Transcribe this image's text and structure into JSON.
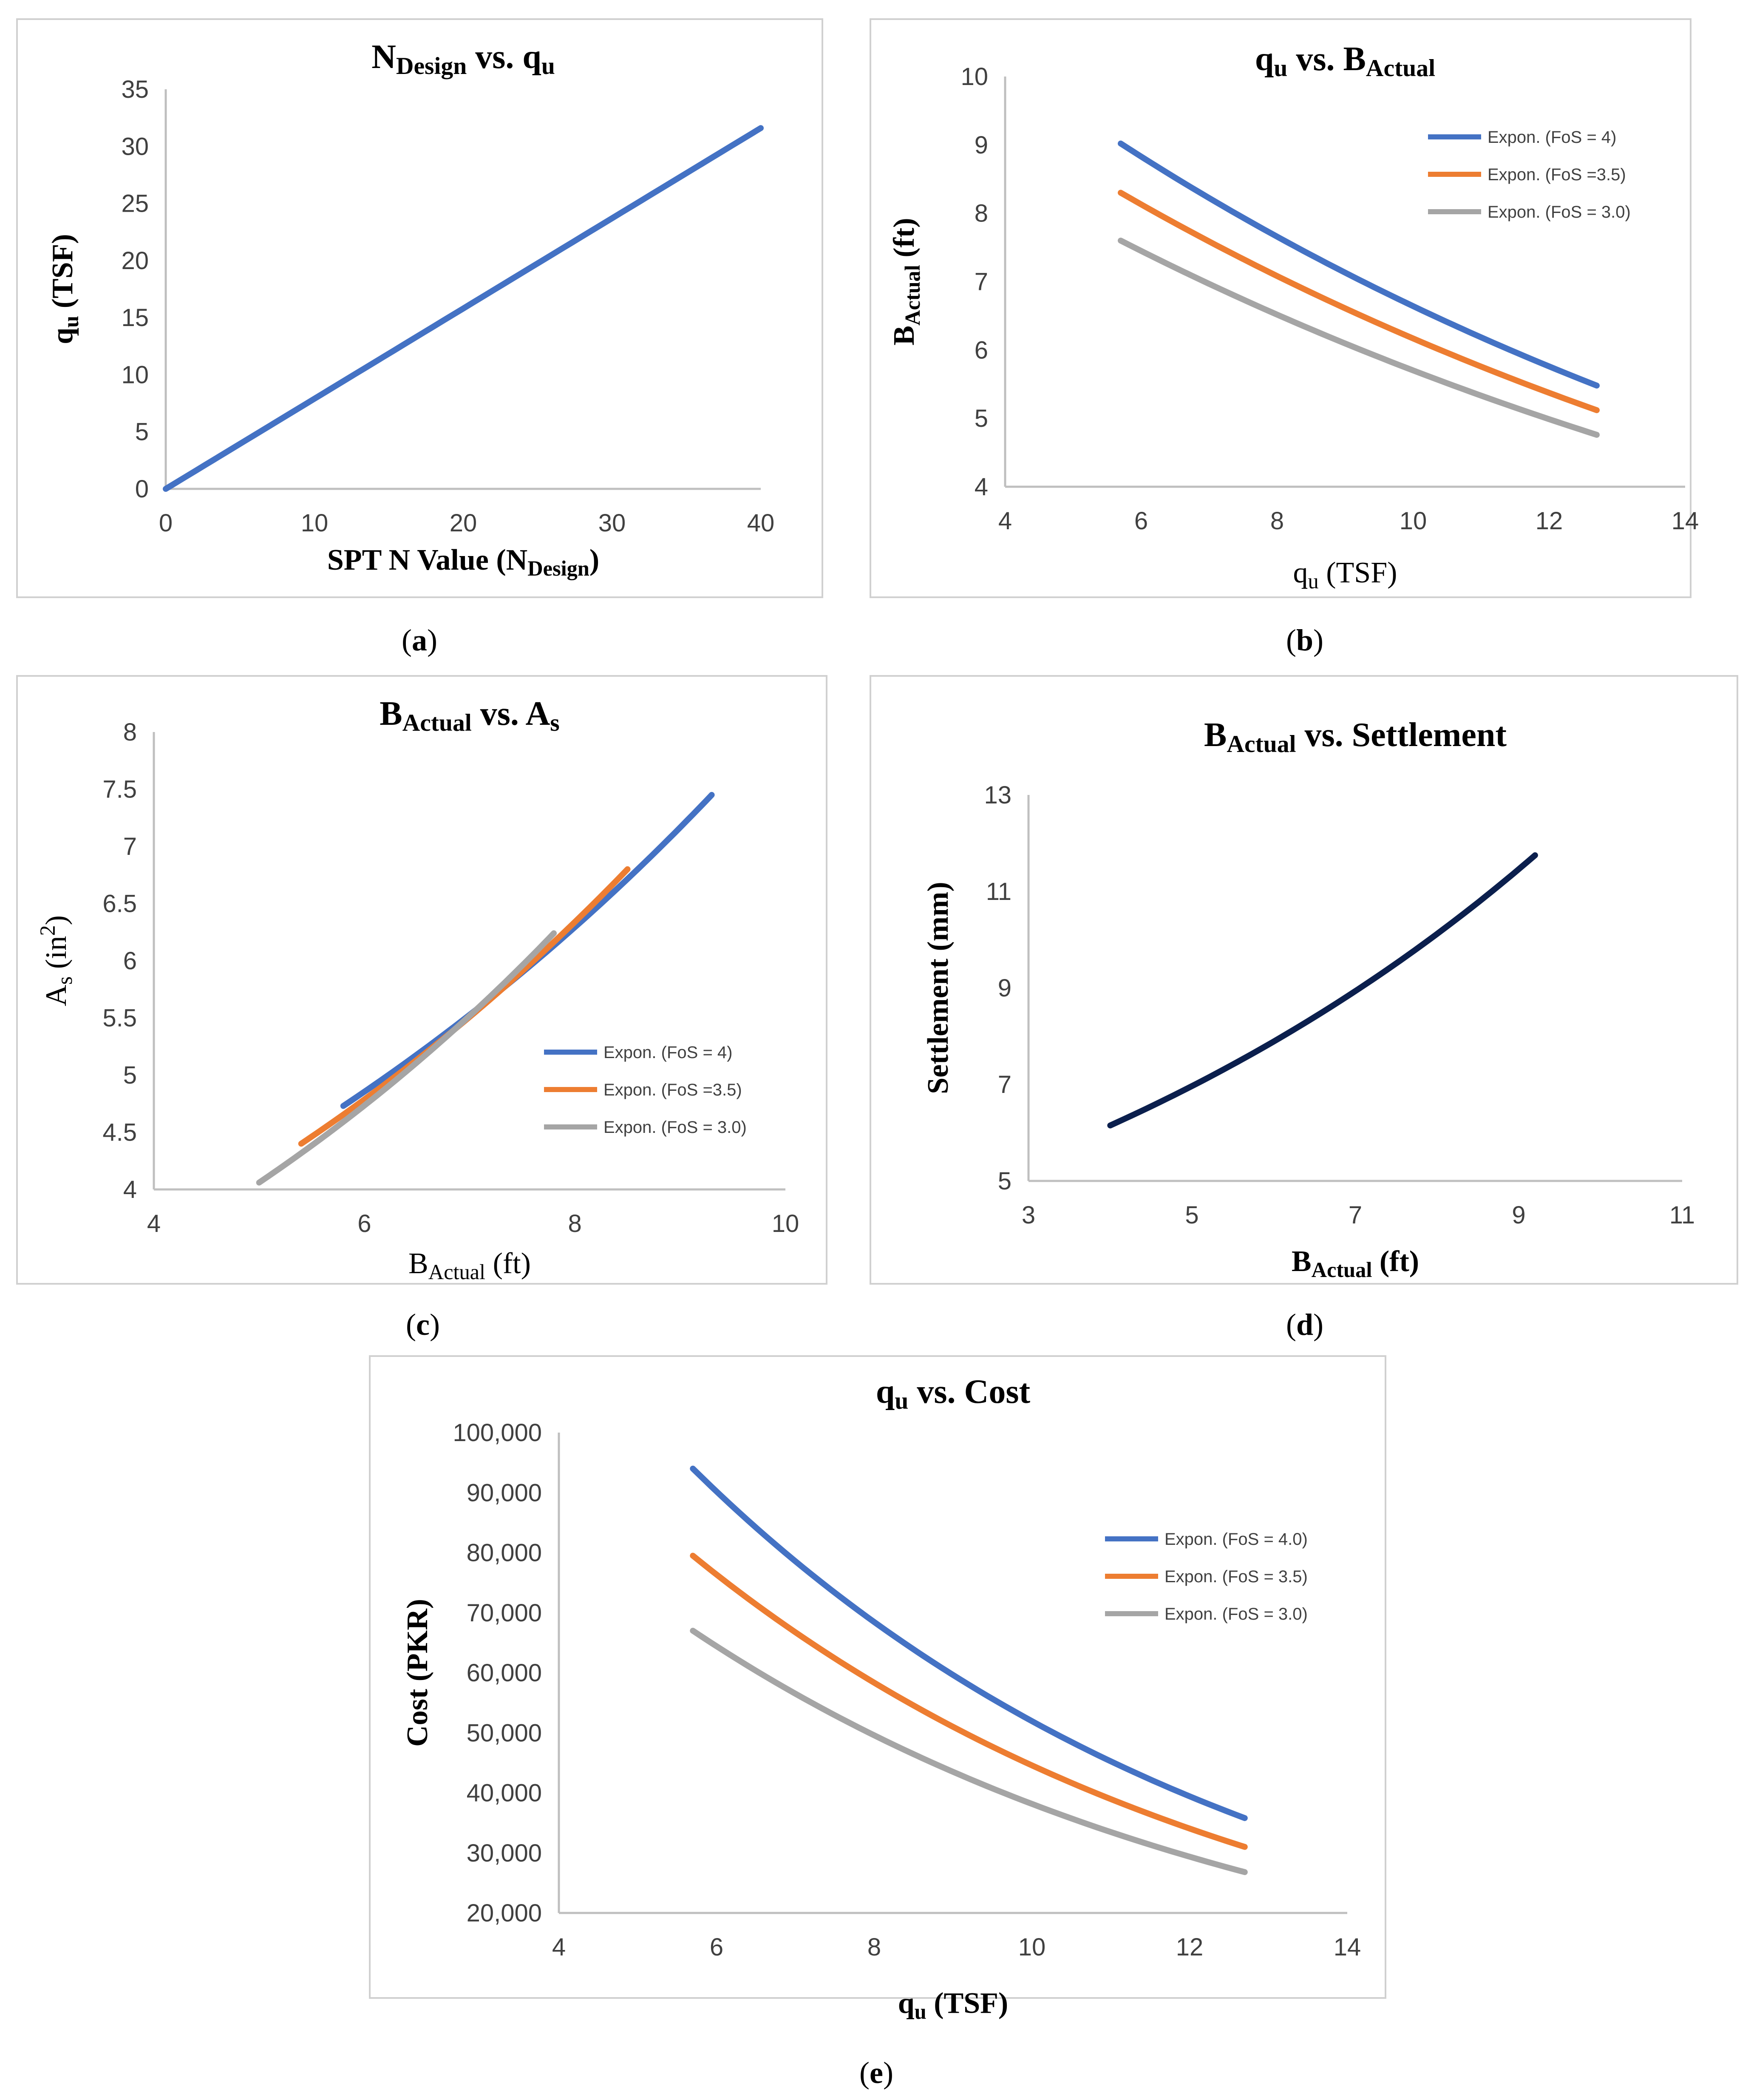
{
  "chart_data": [
    {
      "id": "a",
      "type": "line",
      "caption": "a",
      "title": {
        "main": "N",
        "sub": "Design",
        "rest": " vs. q",
        "sub2": "u"
      },
      "xlabel": {
        "main": "SPT N Value (N",
        "sub": "Design",
        "rest": ")"
      },
      "ylabel": {
        "main": "q",
        "sub": "u",
        "rest": " (TSF)"
      },
      "xlim": [
        0,
        40
      ],
      "ylim": [
        0,
        35
      ],
      "xticks": [
        "0",
        "10",
        "20",
        "30",
        "40"
      ],
      "yticks": [
        "0",
        "5",
        "10",
        "15",
        "20",
        "25",
        "30",
        "35"
      ],
      "series": [
        {
          "name": "",
          "color": "#4472C4",
          "x": [
            0,
            40
          ],
          "y": [
            0,
            31.6
          ]
        }
      ]
    },
    {
      "id": "b",
      "type": "line",
      "caption": "b",
      "title": {
        "main": "q",
        "sub": "u",
        "rest": " vs. B",
        "sub2": "Actual"
      },
      "xlabel": {
        "main": "q",
        "sub": "u",
        "rest": " (TSF)"
      },
      "ylabel": {
        "main": "B",
        "sub": "Actual",
        "rest": " (ft)"
      },
      "xlim": [
        4,
        14
      ],
      "ylim": [
        4,
        10
      ],
      "xticks": [
        "4",
        "6",
        "8",
        "10",
        "12",
        "14"
      ],
      "yticks": [
        "4",
        "5",
        "6",
        "7",
        "8",
        "9",
        "10"
      ],
      "legend": "top-right",
      "series": [
        {
          "name": "Expon. (FoS = 4)",
          "color": "#4472C4",
          "x": [
            5.7,
            12.7
          ],
          "y": [
            9.02,
            5.48
          ]
        },
        {
          "name": "Expon. (FoS =3.5)",
          "color": "#ED7D31",
          "x": [
            5.7,
            12.7
          ],
          "y": [
            8.3,
            5.12
          ]
        },
        {
          "name": "Expon. (FoS = 3.0)",
          "color": "#A5A5A5",
          "x": [
            5.7,
            12.7
          ],
          "y": [
            7.6,
            4.76
          ]
        }
      ]
    },
    {
      "id": "c",
      "type": "line",
      "caption": "c",
      "title": {
        "main": "B",
        "sub": "Actual",
        "rest": " vs. A",
        "sub2": "s"
      },
      "xlabel": {
        "main": "B",
        "sub": "Actual",
        "rest": " (ft)"
      },
      "ylabel": {
        "main": "A",
        "sub": "s",
        "rest": " (in",
        "sup": "2",
        "rest2": ")"
      },
      "xlim": [
        4,
        10
      ],
      "ylim": [
        4,
        8
      ],
      "xticks": [
        "4",
        "6",
        "8",
        "10"
      ],
      "yticks": [
        "4",
        "4.5",
        "5",
        "5.5",
        "6",
        "6.5",
        "7",
        "7.5",
        "8"
      ],
      "legend": "bottom-right",
      "series": [
        {
          "name": "Expon. (FoS = 4)",
          "color": "#4472C4",
          "x": [
            5.8,
            9.3
          ],
          "y": [
            4.73,
            7.45
          ]
        },
        {
          "name": "Expon. (FoS =3.5)",
          "color": "#ED7D31",
          "x": [
            5.4,
            8.5
          ],
          "y": [
            4.4,
            6.8
          ]
        },
        {
          "name": "Expon. (FoS = 3.0)",
          "color": "#A5A5A5",
          "x": [
            5.0,
            7.8
          ],
          "y": [
            4.06,
            6.24
          ]
        }
      ]
    },
    {
      "id": "d",
      "type": "line",
      "caption": "d",
      "title": {
        "main": "B",
        "sub": "Actual",
        "rest": " vs. Settlement",
        "sub2": ""
      },
      "xlabel": {
        "main": "B",
        "sub": "Actual",
        "rest": " (ft)"
      },
      "ylabel": {
        "main": "Settlement (mm)",
        "sub": "",
        "rest": ""
      },
      "xlim": [
        3,
        11
      ],
      "ylim": [
        5,
        13
      ],
      "xticks": [
        "3",
        "5",
        "7",
        "9",
        "11"
      ],
      "yticks": [
        "5",
        "7",
        "9",
        "11",
        "13"
      ],
      "series": [
        {
          "name": "",
          "color": "#0B1F4D",
          "x": [
            4.0,
            9.2
          ],
          "y": [
            6.15,
            11.75
          ]
        }
      ]
    },
    {
      "id": "e",
      "type": "line",
      "caption": "e",
      "title": {
        "main": "q",
        "sub": "u",
        "rest": " vs. Cost",
        "sub2": ""
      },
      "xlabel": {
        "main": "q",
        "sub": "u",
        "rest": " (TSF)"
      },
      "ylabel": {
        "main": "Cost (PKR)",
        "sub": "",
        "rest": ""
      },
      "xlim": [
        4,
        14
      ],
      "ylim": [
        20000,
        100000
      ],
      "xticks": [
        "4",
        "6",
        "8",
        "10",
        "12",
        "14"
      ],
      "yticks": [
        "20,000",
        "30,000",
        "40,000",
        "50,000",
        "60,000",
        "70,000",
        "80,000",
        "90,000",
        "100,000"
      ],
      "legend": "top-right",
      "series": [
        {
          "name": "Expon. (FoS = 4.0)",
          "color": "#4472C4",
          "x": [
            5.7,
            12.7
          ],
          "y": [
            94000,
            35800
          ]
        },
        {
          "name": "Expon. (FoS = 3.5)",
          "color": "#ED7D31",
          "x": [
            5.7,
            12.7
          ],
          "y": [
            79500,
            31000
          ]
        },
        {
          "name": "Expon. (FoS = 3.0)",
          "color": "#A5A5A5",
          "x": [
            5.7,
            12.7
          ],
          "y": [
            67000,
            26800
          ]
        }
      ]
    }
  ]
}
